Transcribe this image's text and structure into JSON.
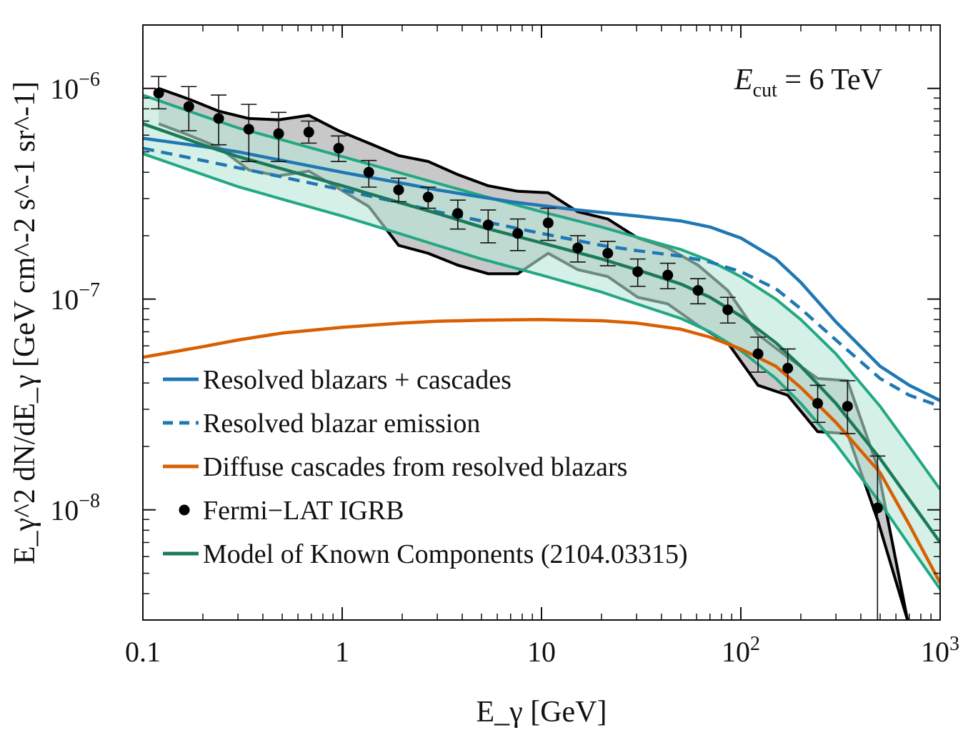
{
  "chart_data": {
    "type": "line",
    "xlabel": "E_γ [GeV]",
    "ylabel": "E_γ^2 dN/dE_γ [GeV cm^-2 s^-1 sr^-1]",
    "xscale": "log",
    "yscale": "log",
    "xlim": [
      0.1,
      1000
    ],
    "ylim": [
      3e-09,
      2e-06
    ],
    "x_ticks": [
      {
        "value": 0.1,
        "label": "0.1"
      },
      {
        "value": 1,
        "label": "1"
      },
      {
        "value": 10,
        "label": "10"
      },
      {
        "value": 100,
        "label": "10",
        "sup": "2"
      },
      {
        "value": 1000,
        "label": "10",
        "sup": "3"
      }
    ],
    "y_ticks": [
      {
        "value": 1e-08,
        "label": "10",
        "sup": "−8"
      },
      {
        "value": 1e-07,
        "label": "10",
        "sup": "−7"
      },
      {
        "value": 1e-06,
        "label": "10",
        "sup": "−6"
      }
    ],
    "annotation": {
      "main": "E",
      "sub": "cut",
      "rest": " = 6 TeV"
    },
    "grid": false,
    "legend_position": "bottom-left",
    "legend": [
      {
        "label": "Resolved blazars + cascades",
        "style": "line",
        "color": "#1f77b4"
      },
      {
        "label": "Resolved blazar emission",
        "style": "dashed",
        "color": "#1f77b4"
      },
      {
        "label": "Diffuse cascades from resolved blazars",
        "style": "line",
        "color": "#d95f02"
      },
      {
        "label": "Fermi−LAT IGRB",
        "style": "marker",
        "color": "#000000"
      },
      {
        "label": "Model of Known Components (2104.03315)",
        "style": "line",
        "color": "#1a7a5a"
      }
    ],
    "series": [
      {
        "name": "Resolved blazars + cascades",
        "color": "#1f77b4",
        "dash": "none",
        "x": [
          0.1,
          0.2,
          0.3,
          0.5,
          1,
          2,
          3,
          5,
          7,
          10,
          15,
          20,
          30,
          50,
          70,
          100,
          150,
          200,
          300,
          500,
          700,
          1000
        ],
        "y": [
          5.8e-07,
          5.3e-07,
          5e-07,
          4.55e-07,
          4e-07,
          3.55e-07,
          3.3e-07,
          3.05e-07,
          2.9e-07,
          2.78e-07,
          2.65e-07,
          2.58e-07,
          2.48e-07,
          2.35e-07,
          2.2e-07,
          1.95e-07,
          1.55e-07,
          1.2e-07,
          7.8e-08,
          4.8e-08,
          3.9e-08,
          3.3e-08
        ]
      },
      {
        "name": "Resolved blazar emission",
        "color": "#1f77b4",
        "dash": "dashed",
        "x": [
          0.1,
          0.2,
          0.3,
          0.5,
          1,
          2,
          3,
          5,
          10,
          20,
          30,
          50,
          70,
          100,
          150,
          200,
          300,
          500,
          700,
          1000
        ],
        "y": [
          5.2e-07,
          4.55e-07,
          4.2e-07,
          3.8e-07,
          3.3e-07,
          2.85e-07,
          2.6e-07,
          2.35e-07,
          2.05e-07,
          1.8e-07,
          1.7e-07,
          1.6e-07,
          1.5e-07,
          1.35e-07,
          1.12e-07,
          9e-08,
          6.4e-08,
          4.2e-08,
          3.5e-08,
          3.1e-08
        ]
      },
      {
        "name": "Diffuse cascades from resolved blazars",
        "color": "#d95f02",
        "dash": "none",
        "x": [
          0.1,
          0.2,
          0.3,
          0.5,
          1,
          2,
          3,
          5,
          10,
          20,
          30,
          50,
          70,
          100,
          150,
          200,
          300,
          500,
          700,
          1000
        ],
        "y": [
          5.3e-08,
          5.95e-08,
          6.4e-08,
          6.9e-08,
          7.35e-08,
          7.7e-08,
          7.85e-08,
          7.95e-08,
          8e-08,
          7.9e-08,
          7.7e-08,
          7.2e-08,
          6.6e-08,
          5.8e-08,
          4.8e-08,
          3.8e-08,
          2.6e-08,
          1.5e-08,
          8.5e-09,
          4.5e-09
        ]
      },
      {
        "name": "Model of Known Components (2104.03315)",
        "color": "#1a7a5a",
        "dash": "none",
        "x": [
          0.1,
          0.2,
          0.3,
          0.5,
          1,
          2,
          3,
          5,
          10,
          20,
          30,
          50,
          70,
          100,
          150,
          200,
          300,
          500,
          700,
          1000
        ],
        "y": [
          6.8e-07,
          5.4e-07,
          4.75e-07,
          4.15e-07,
          3.45e-07,
          2.85e-07,
          2.55e-07,
          2.2e-07,
          1.85e-07,
          1.55e-07,
          1.38e-07,
          1.18e-07,
          1.02e-07,
          8.3e-08,
          6.2e-08,
          4.8e-08,
          3.2e-08,
          1.75e-08,
          1.12e-08,
          7e-09
        ]
      }
    ],
    "model_band": {
      "color": "#22a884",
      "fill": "#b9e6d6",
      "x": [
        0.1,
        0.2,
        0.3,
        0.5,
        1,
        2,
        3,
        5,
        10,
        20,
        30,
        50,
        70,
        100,
        150,
        200,
        300,
        500,
        700,
        1000
      ],
      "upper": [
        9.3e-07,
        7.4e-07,
        6.5e-07,
        5.7e-07,
        4.75e-07,
        3.95e-07,
        3.55e-07,
        3.1e-07,
        2.6e-07,
        2.2e-07,
        1.97e-07,
        1.72e-07,
        1.52e-07,
        1.28e-07,
        1e-07,
        8e-08,
        5.5e-08,
        3.1e-08,
        2e-08,
        1.25e-08
      ],
      "lower": [
        4.9e-07,
        3.9e-07,
        3.42e-07,
        2.98e-07,
        2.48e-07,
        2.03e-07,
        1.8e-07,
        1.55e-07,
        1.3e-07,
        1.08e-07,
        9.5e-08,
        8.1e-08,
        7e-08,
        5.7e-08,
        4.2e-08,
        3.2e-08,
        2.05e-08,
        1.08e-08,
        6.8e-09,
        4.2e-09
      ]
    },
    "igrb_systematic_band": {
      "color": "#000000",
      "fill": "#c8c8c8",
      "x": [
        0.12,
        0.17,
        0.24,
        0.34,
        0.48,
        0.68,
        0.96,
        1.36,
        1.92,
        2.7,
        3.8,
        5.4,
        7.6,
        10.8,
        15.2,
        21.5,
        30.4,
        43,
        61,
        86,
        122,
        172,
        243,
        343,
        485,
        686
      ],
      "upper": [
        1e-06,
        8.9e-07,
        7.8e-07,
        7.2e-07,
        7.1e-07,
        7.45e-07,
        6.3e-07,
        5.5e-07,
        4.8e-07,
        4.5e-07,
        3.9e-07,
        3.45e-07,
        3.25e-07,
        3.2e-07,
        2.6e-07,
        2.4e-07,
        1.95e-07,
        1.75e-07,
        1.45e-07,
        1.1e-07,
        6.8e-08,
        5.3e-08,
        4.2e-08,
        4.1e-08,
        1.6e-08,
        3e-09
      ],
      "lower": [
        6.8e-07,
        6e-07,
        5.25e-07,
        4.1e-07,
        3.85e-07,
        4.05e-07,
        3.35e-07,
        2.75e-07,
        1.8e-07,
        1.65e-07,
        1.45e-07,
        1.32e-07,
        1.32e-07,
        1.65e-07,
        1.38e-07,
        1.28e-07,
        1.02e-07,
        9.5e-08,
        7.5e-08,
        6.2e-08,
        3.9e-08,
        3.5e-08,
        2.35e-08,
        2.3e-08,
        9e-09,
        3e-09
      ]
    },
    "igrb_points": {
      "name": "Fermi−LAT IGRB",
      "x": [
        0.12,
        0.17,
        0.24,
        0.34,
        0.48,
        0.68,
        0.96,
        1.36,
        1.92,
        2.7,
        3.8,
        5.4,
        7.6,
        10.8,
        15.2,
        21.5,
        30.4,
        43,
        61,
        86,
        122,
        172,
        243,
        343,
        485
      ],
      "y": [
        9.5e-07,
        8.2e-07,
        7.2e-07,
        6.4e-07,
        6.1e-07,
        6.2e-07,
        5.2e-07,
        4e-07,
        3.3e-07,
        3.05e-07,
        2.55e-07,
        2.25e-07,
        2.05e-07,
        2.3e-07,
        1.75e-07,
        1.65e-07,
        1.35e-07,
        1.3e-07,
        1.1e-07,
        8.9e-08,
        5.5e-08,
        4.7e-08,
        3.2e-08,
        3.1e-08,
        1.02e-08
      ],
      "err_hi": [
        1.14e-06,
        1.02e-06,
        9.3e-07,
        8.4e-07,
        7.7e-07,
        7e-07,
        5.95e-07,
        4.55e-07,
        3.75e-07,
        3.4e-07,
        2.95e-07,
        2.65e-07,
        2.4e-07,
        2.7e-07,
        2e-07,
        1.88e-07,
        1.55e-07,
        1.48e-07,
        1.25e-07,
        1.02e-07,
        6.6e-08,
        5.8e-08,
        3.9e-08,
        4.1e-08,
        1.8e-08
      ],
      "err_lo": [
        8e-07,
        6.3e-07,
        5.4e-07,
        4.5e-07,
        4.5e-07,
        5.5e-07,
        4.5e-07,
        3.4e-07,
        2.9e-07,
        2.7e-07,
        2.15e-07,
        1.85e-07,
        1.7e-07,
        1.9e-07,
        1.5e-07,
        1.44e-07,
        1.15e-07,
        1.12e-07,
        9.5e-08,
        7.7e-08,
        4.5e-08,
        3.7e-08,
        2.6e-08,
        2.3e-08,
        3e-09
      ]
    }
  }
}
